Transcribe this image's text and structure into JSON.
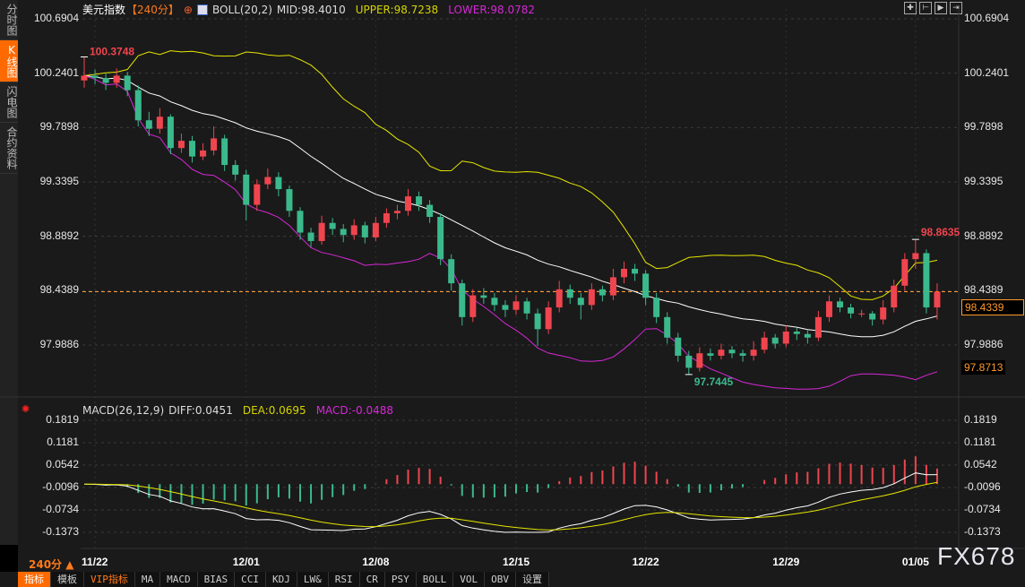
{
  "sidebar": {
    "items": [
      {
        "label": "分时图",
        "active": false
      },
      {
        "label": "K线图",
        "active": true
      },
      {
        "label": "闪电图",
        "active": false
      },
      {
        "label": "合约资料",
        "active": false
      }
    ]
  },
  "header": {
    "symbol": "美元指数",
    "period": "【240分】",
    "indicator": "BOLL(20,2)",
    "mid": "MID:98.4010",
    "upper": "UPPER:98.7238",
    "lower": "LOWER:98.0782"
  },
  "toolbar": {
    "icons": [
      "crosshair-icon",
      "zoom-range-icon",
      "play-icon",
      "exit-icon"
    ]
  },
  "colors": {
    "up": "#f0454f",
    "down": "#3bb98c",
    "mid": "#ffffff",
    "upper": "#e6e600",
    "lower": "#d628d6",
    "price_line": "#ff9a2e",
    "diff": "#ffffff",
    "dea": "#e6e600"
  },
  "main_axis": [
    "100.6904",
    "100.2401",
    "99.7898",
    "99.3395",
    "98.8892",
    "98.4389",
    "97.9886"
  ],
  "price": {
    "last": "98.4339",
    "other": "97.8713",
    "high_label": "98.8635",
    "low_label": "97.7445",
    "start_label": "100.3748"
  },
  "macd": {
    "title": "MACD(26,12,9)",
    "diff": "DIFF:0.0451",
    "dea": "DEA:0.0695",
    "macd": "MACD:-0.0488",
    "axis": [
      "0.1819",
      "0.1181",
      "0.0542",
      "-0.0096",
      "-0.0734",
      "-0.1373"
    ]
  },
  "dates": [
    {
      "label": "11/22",
      "i": 1
    },
    {
      "label": "12/01",
      "i": 15
    },
    {
      "label": "12/08",
      "i": 27
    },
    {
      "label": "12/15",
      "i": 40
    },
    {
      "label": "12/22",
      "i": 52
    },
    {
      "label": "12/29",
      "i": 65
    },
    {
      "label": "01/05",
      "i": 77
    }
  ],
  "period_label": "240分 ▲",
  "tabs": [
    "指标",
    "模板",
    "VIP指标",
    "MA",
    "MACD",
    "BIAS",
    "CCI",
    "KDJ",
    "LW&",
    "RSI",
    "CR",
    "PSY",
    "BOLL",
    "VOL",
    "OBV",
    "设置"
  ],
  "watermark": "FX678",
  "chart_data": {
    "type": "candlestick",
    "ylim": [
      97.6,
      100.75
    ],
    "macd_ylim": [
      -0.1373,
      0.1819
    ],
    "candles": [
      [
        100.18,
        100.3748,
        100.12,
        100.22
      ],
      [
        100.22,
        100.27,
        100.15,
        100.2
      ],
      [
        100.2,
        100.24,
        100.1,
        100.16
      ],
      [
        100.16,
        100.28,
        100.12,
        100.22
      ],
      [
        100.22,
        100.25,
        100.05,
        100.1
      ],
      [
        100.1,
        100.14,
        99.8,
        99.85
      ],
      [
        99.85,
        99.92,
        99.72,
        99.78
      ],
      [
        99.78,
        99.95,
        99.74,
        99.88
      ],
      [
        99.88,
        99.9,
        99.57,
        99.62
      ],
      [
        99.62,
        99.74,
        99.58,
        99.68
      ],
      [
        99.68,
        99.72,
        99.5,
        99.55
      ],
      [
        99.55,
        99.66,
        99.52,
        99.6
      ],
      [
        99.6,
        99.8,
        99.56,
        99.7
      ],
      [
        99.7,
        99.73,
        99.43,
        99.48
      ],
      [
        99.48,
        99.52,
        99.35,
        99.4
      ],
      [
        99.4,
        99.44,
        99.02,
        99.15
      ],
      [
        99.15,
        99.36,
        99.1,
        99.32
      ],
      [
        99.32,
        99.45,
        99.28,
        99.38
      ],
      [
        99.38,
        99.42,
        99.22,
        99.28
      ],
      [
        99.28,
        99.31,
        99.05,
        99.1
      ],
      [
        99.1,
        99.13,
        98.86,
        98.92
      ],
      [
        98.92,
        98.96,
        98.8,
        98.85
      ],
      [
        98.85,
        99.06,
        98.82,
        99.0
      ],
      [
        99.0,
        99.04,
        98.9,
        98.95
      ],
      [
        98.95,
        98.99,
        98.84,
        98.9
      ],
      [
        98.9,
        99.03,
        98.86,
        98.98
      ],
      [
        98.98,
        99.01,
        98.83,
        98.88
      ],
      [
        98.88,
        99.05,
        98.85,
        99.0
      ],
      [
        99.0,
        99.12,
        98.96,
        99.08
      ],
      [
        99.08,
        99.15,
        99.03,
        99.1
      ],
      [
        99.1,
        99.28,
        99.06,
        99.22
      ],
      [
        99.22,
        99.26,
        99.1,
        99.15
      ],
      [
        99.15,
        99.19,
        99.0,
        99.05
      ],
      [
        99.05,
        99.08,
        98.65,
        98.7
      ],
      [
        98.7,
        98.74,
        98.44,
        98.5
      ],
      [
        98.5,
        98.53,
        98.15,
        98.22
      ],
      [
        98.22,
        98.45,
        98.18,
        98.4
      ],
      [
        98.4,
        98.46,
        98.33,
        98.38
      ],
      [
        98.38,
        98.42,
        98.27,
        98.32
      ],
      [
        98.32,
        98.36,
        98.22,
        98.28
      ],
      [
        98.28,
        98.4,
        98.24,
        98.35
      ],
      [
        98.35,
        98.38,
        98.2,
        98.25
      ],
      [
        98.25,
        98.29,
        97.98,
        98.12
      ],
      [
        98.12,
        98.35,
        98.08,
        98.3
      ],
      [
        98.3,
        98.52,
        98.26,
        98.45
      ],
      [
        98.45,
        98.49,
        98.33,
        98.38
      ],
      [
        98.38,
        98.42,
        98.2,
        98.32
      ],
      [
        98.32,
        98.5,
        98.28,
        98.45
      ],
      [
        98.45,
        98.48,
        98.35,
        98.4
      ],
      [
        98.4,
        98.62,
        98.36,
        98.55
      ],
      [
        98.55,
        98.68,
        98.5,
        98.62
      ],
      [
        98.62,
        98.66,
        98.52,
        98.58
      ],
      [
        98.58,
        98.61,
        98.32,
        98.38
      ],
      [
        98.38,
        98.42,
        98.17,
        98.22
      ],
      [
        98.22,
        98.26,
        98.0,
        98.05
      ],
      [
        98.05,
        98.09,
        97.85,
        97.9
      ],
      [
        97.9,
        97.94,
        97.7445,
        97.8
      ],
      [
        97.8,
        97.97,
        97.77,
        97.92
      ],
      [
        97.92,
        97.96,
        97.86,
        97.9
      ],
      [
        97.9,
        98.0,
        97.87,
        97.95
      ],
      [
        97.95,
        97.98,
        97.88,
        97.92
      ],
      [
        97.92,
        97.95,
        97.85,
        97.9
      ],
      [
        97.9,
        98.02,
        97.86,
        97.95
      ],
      [
        97.95,
        98.1,
        97.92,
        98.05
      ],
      [
        98.05,
        98.08,
        97.96,
        98.0
      ],
      [
        98.0,
        98.15,
        97.97,
        98.1
      ],
      [
        98.1,
        98.13,
        98.03,
        98.08
      ],
      [
        98.08,
        98.11,
        98.0,
        98.05
      ],
      [
        98.05,
        98.27,
        98.02,
        98.22
      ],
      [
        98.22,
        98.4,
        98.18,
        98.35
      ],
      [
        98.35,
        98.38,
        98.26,
        98.3
      ],
      [
        98.3,
        98.33,
        98.21,
        98.25
      ],
      [
        98.25,
        98.28,
        98.22,
        98.25
      ],
      [
        98.25,
        98.27,
        98.15,
        98.2
      ],
      [
        98.2,
        98.36,
        98.16,
        98.3
      ],
      [
        98.3,
        98.53,
        98.26,
        98.48
      ],
      [
        98.48,
        98.75,
        98.44,
        98.7
      ],
      [
        98.7,
        98.8635,
        98.62,
        98.75
      ],
      [
        98.75,
        98.78,
        98.25,
        98.3
      ],
      [
        98.3,
        98.5,
        98.2,
        98.43
      ]
    ]
  }
}
